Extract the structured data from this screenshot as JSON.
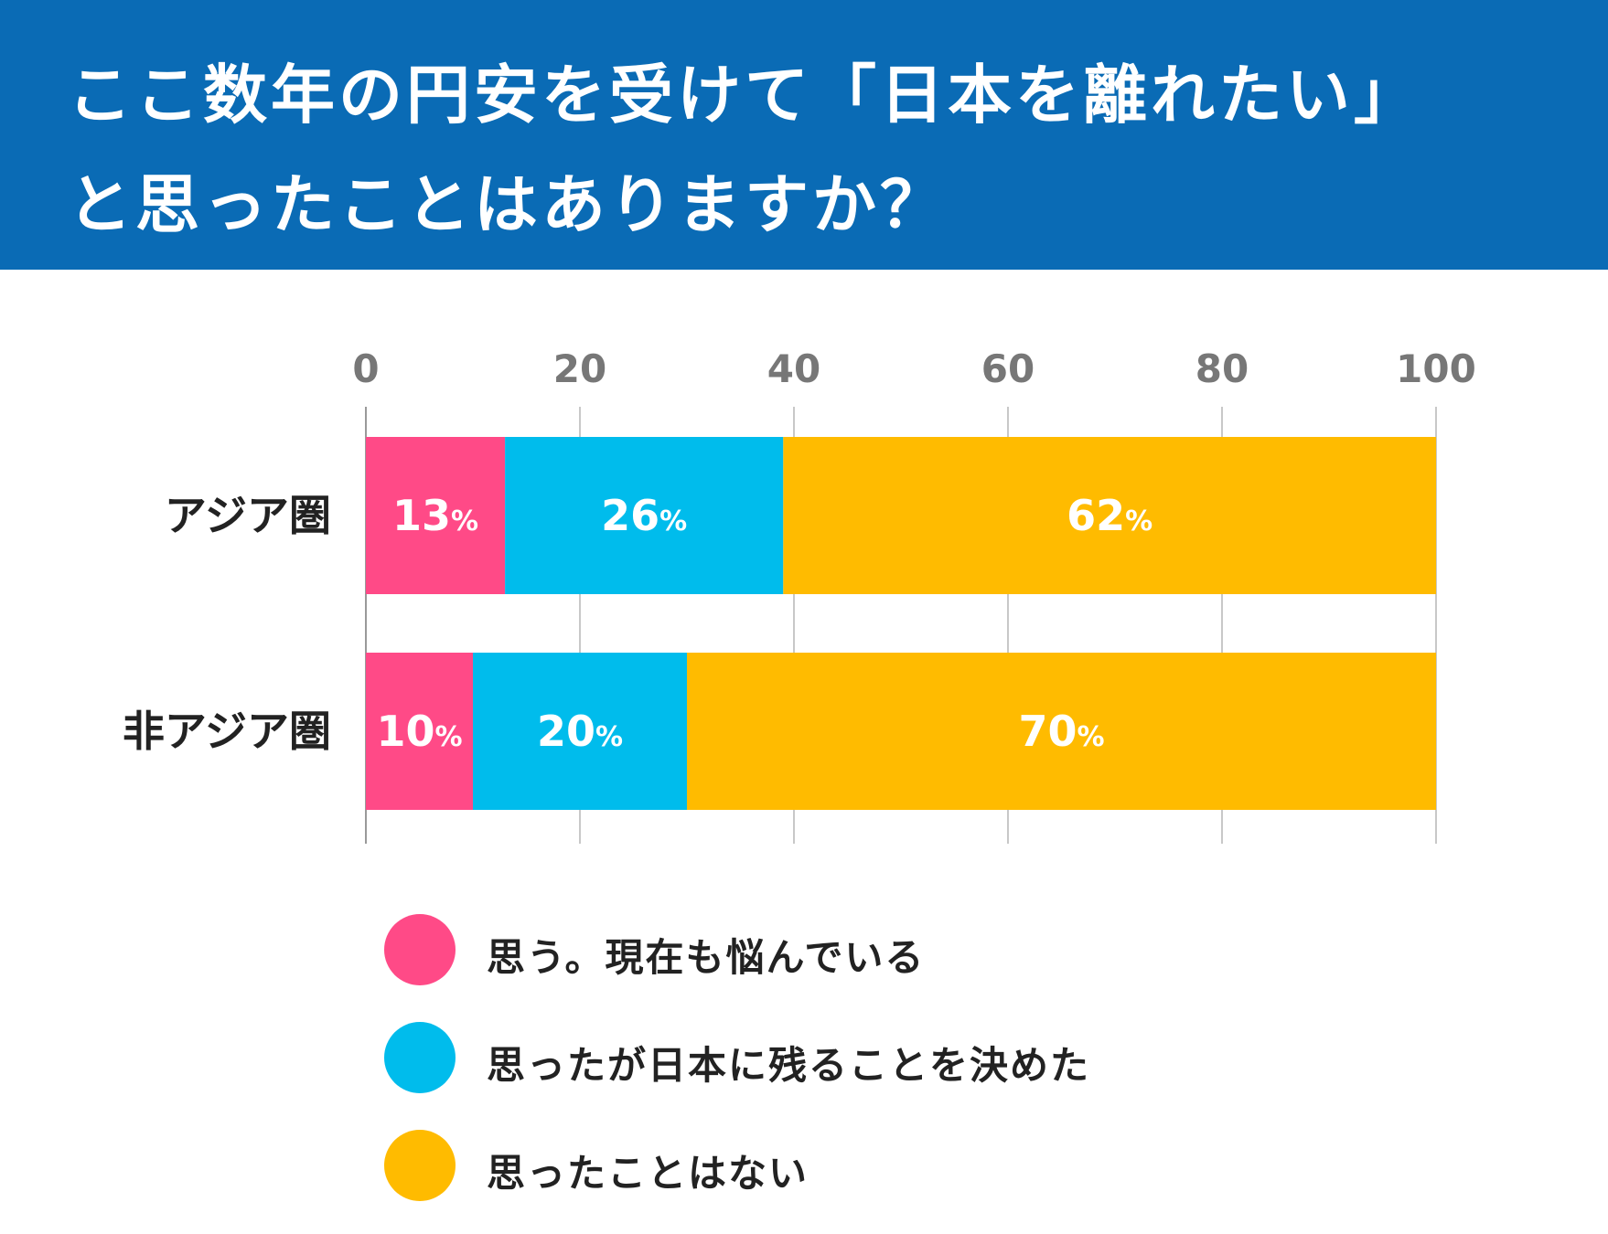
{
  "title": {
    "line1": "ここ数年の円安を受けて「日本を離れたい」",
    "line2": "と思ったことはありますか？"
  },
  "colors": {
    "banner": "#0a6bb5",
    "series": [
      "#ff4a87",
      "#00bcec",
      "#ffbb00"
    ],
    "axis_text": "#777777",
    "grid": "#c8c8c8",
    "category_text": "#222222"
  },
  "chart_data": {
    "type": "bar",
    "orientation": "horizontal",
    "stacked": true,
    "title": "ここ数年の円安を受けて「日本を離れたい」と思ったことはありますか？",
    "categories": [
      "アジア圏",
      "非アジア圏"
    ],
    "series": [
      {
        "name": "思う。現在も悩んでいる",
        "values": [
          13,
          10
        ],
        "labels": [
          "13",
          "10"
        ]
      },
      {
        "name": "思ったが日本に残ることを決めた",
        "values": [
          26,
          20
        ],
        "labels": [
          "26",
          "20"
        ]
      },
      {
        "name": "思ったことはない",
        "values": [
          62,
          70
        ],
        "labels": [
          "62",
          "70"
        ]
      }
    ],
    "xlim": [
      0,
      100
    ],
    "xticks": [
      "0",
      "20",
      "40",
      "60",
      "80",
      "100"
    ],
    "unit": "%",
    "grid": true,
    "legend_position": "bottom"
  },
  "legend": {
    "items": [
      "思う。現在も悩んでいる",
      "思ったが日本に残ることを決めた",
      "思ったことはない"
    ]
  }
}
